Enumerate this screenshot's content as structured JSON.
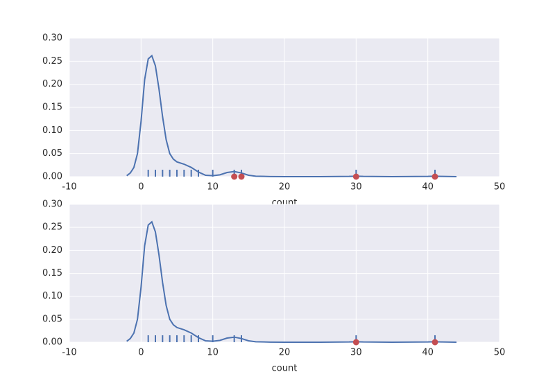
{
  "chart_data": [
    {
      "type": "kde",
      "xlabel": "count",
      "grid": true,
      "xlim": [
        -10,
        50
      ],
      "xticks": [
        -10,
        0,
        10,
        20,
        30,
        40,
        50
      ],
      "ylim": [
        0,
        0.3
      ],
      "yticks": [
        {
          "value": 0,
          "label": "0.00"
        },
        {
          "value": 0.05,
          "label": "0.05"
        },
        {
          "value": 0.1,
          "label": "0.10"
        },
        {
          "value": 0.15,
          "label": "0.15"
        },
        {
          "value": 0.2,
          "label": "0.20"
        },
        {
          "value": 0.25,
          "label": "0.25"
        },
        {
          "value": 0.3,
          "label": "0.30"
        }
      ],
      "kde": {
        "color": "#4c72b0",
        "x": [
          -2,
          -1.5,
          -1,
          -0.5,
          0,
          0.5,
          1,
          1.5,
          2,
          2.5,
          3,
          3.5,
          4,
          4.5,
          5,
          6,
          7,
          8,
          9,
          10,
          11,
          12,
          13,
          14,
          15,
          16,
          18,
          20,
          25,
          29,
          30,
          31,
          35,
          40,
          41,
          42,
          44
        ],
        "values": [
          0.002,
          0.008,
          0.02,
          0.05,
          0.12,
          0.21,
          0.255,
          0.262,
          0.24,
          0.19,
          0.13,
          0.08,
          0.05,
          0.038,
          0.032,
          0.027,
          0.02,
          0.01,
          0.003,
          0.002,
          0.004,
          0.009,
          0.011,
          0.008,
          0.003,
          0.001,
          0.0002,
          0,
          0,
          0.0005,
          0.001,
          0.0005,
          0,
          0.0005,
          0.001,
          0.0005,
          0
        ]
      },
      "rug": {
        "color": "#4c72b0",
        "x": [
          1,
          2,
          3,
          4,
          5,
          6,
          7,
          8,
          10,
          13,
          14,
          30,
          41
        ]
      },
      "points": {
        "color": "#c44e52",
        "x": [
          13,
          14,
          30,
          41
        ],
        "values": [
          0,
          0,
          0,
          0
        ]
      }
    },
    {
      "type": "kde",
      "xlabel": "count",
      "grid": true,
      "xlim": [
        -10,
        50
      ],
      "xticks": [
        -10,
        0,
        10,
        20,
        30,
        40,
        50
      ],
      "ylim": [
        0,
        0.3
      ],
      "yticks": [
        {
          "value": 0,
          "label": "0.00"
        },
        {
          "value": 0.05,
          "label": "0.05"
        },
        {
          "value": 0.1,
          "label": "0.10"
        },
        {
          "value": 0.15,
          "label": "0.15"
        },
        {
          "value": 0.2,
          "label": "0.20"
        },
        {
          "value": 0.25,
          "label": "0.25"
        },
        {
          "value": 0.3,
          "label": "0.30"
        }
      ],
      "kde": {
        "color": "#4c72b0",
        "x": [
          -2,
          -1.5,
          -1,
          -0.5,
          0,
          0.5,
          1,
          1.5,
          2,
          2.5,
          3,
          3.5,
          4,
          4.5,
          5,
          6,
          7,
          8,
          9,
          10,
          11,
          12,
          13,
          14,
          15,
          16,
          18,
          20,
          25,
          29,
          30,
          31,
          35,
          40,
          41,
          42,
          44
        ],
        "values": [
          0.002,
          0.008,
          0.02,
          0.05,
          0.12,
          0.21,
          0.255,
          0.262,
          0.24,
          0.19,
          0.13,
          0.08,
          0.05,
          0.038,
          0.032,
          0.027,
          0.02,
          0.01,
          0.003,
          0.002,
          0.004,
          0.009,
          0.011,
          0.008,
          0.003,
          0.001,
          0.0002,
          0,
          0,
          0.0005,
          0.001,
          0.0005,
          0,
          0.0005,
          0.001,
          0.0005,
          0
        ]
      },
      "rug": {
        "color": "#4c72b0",
        "x": [
          1,
          2,
          3,
          4,
          5,
          6,
          7,
          8,
          10,
          13,
          14,
          30,
          41
        ]
      },
      "points": {
        "color": "#c44e52",
        "x": [
          30,
          41
        ],
        "values": [
          0,
          0
        ]
      }
    }
  ]
}
